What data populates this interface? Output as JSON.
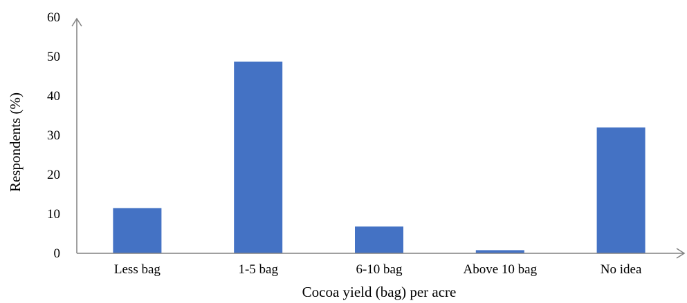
{
  "chart_data": {
    "type": "bar",
    "title": "",
    "xlabel": "Cocoa yield (bag) per acre",
    "ylabel": "Respondents (%)",
    "categories": [
      "Less bag",
      "1-5 bag",
      "6-10 bag",
      "Above 10 bag",
      "No idea"
    ],
    "values": [
      11.5,
      48.7,
      6.8,
      0.8,
      32.0
    ],
    "ylim": [
      0,
      60
    ],
    "yticks": [
      "0",
      "10",
      "20",
      "30",
      "40",
      "50",
      "60"
    ],
    "grid": false,
    "legend": "none",
    "bar_color": "#4472c4",
    "axis_color": "#808080"
  }
}
